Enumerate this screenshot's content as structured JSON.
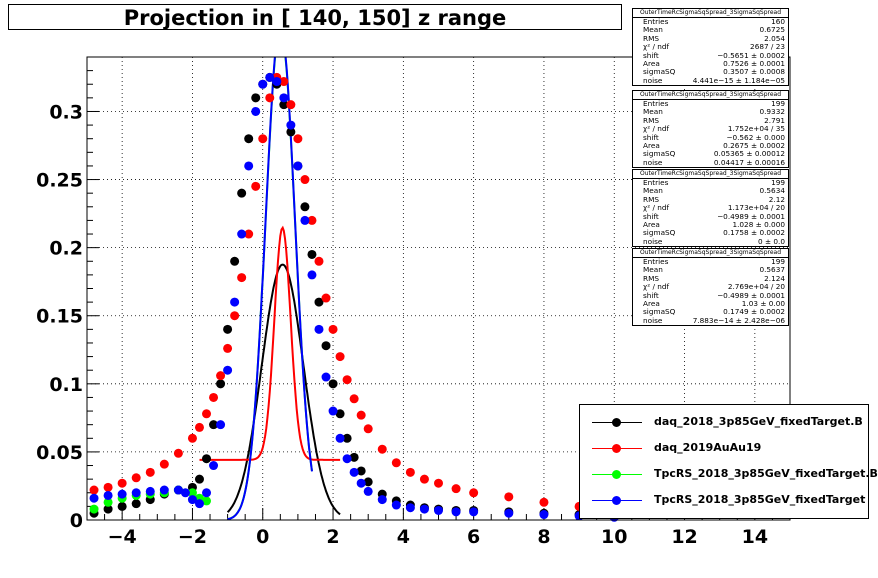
{
  "title": "Projection in [ 140, 150] z range",
  "chart_data": {
    "type": "scatter",
    "xlim": [
      -5,
      15
    ],
    "ylim": [
      0,
      0.34
    ],
    "x_ticks": [
      -4,
      -2,
      0,
      2,
      4,
      6,
      8,
      10,
      12,
      14
    ],
    "x_tick_labels": [
      "−4",
      "−2",
      "0",
      "2",
      "4",
      "6",
      "8",
      "10",
      "12",
      "14"
    ],
    "y_ticks": [
      0,
      0.05,
      0.1,
      0.15,
      0.2,
      0.25,
      0.3
    ],
    "y_tick_labels": [
      "0",
      "0.05",
      "0.1",
      "0.15",
      "0.2",
      "0.25",
      "0.3"
    ],
    "grid": true,
    "legend_position": "bottom-right",
    "series": [
      {
        "name": "daq_2018_3p85GeV_fixedTarget.B",
        "color": "#000000",
        "points": [
          [
            -4.8,
            0.005
          ],
          [
            -4.4,
            0.008
          ],
          [
            -4.0,
            0.01
          ],
          [
            -3.6,
            0.012
          ],
          [
            -3.2,
            0.015
          ],
          [
            -2.8,
            0.019
          ],
          [
            -2.4,
            0.022
          ],
          [
            -2.0,
            0.024
          ],
          [
            -1.8,
            0.03
          ],
          [
            -1.6,
            0.045
          ],
          [
            -1.4,
            0.07
          ],
          [
            -1.2,
            0.1
          ],
          [
            -1.0,
            0.14
          ],
          [
            -0.8,
            0.19
          ],
          [
            -0.6,
            0.24
          ],
          [
            -0.4,
            0.28
          ],
          [
            -0.2,
            0.31
          ],
          [
            0.0,
            0.32
          ],
          [
            0.2,
            0.325
          ],
          [
            0.4,
            0.32
          ],
          [
            0.6,
            0.305
          ],
          [
            0.8,
            0.285
          ],
          [
            1.0,
            0.26
          ],
          [
            1.2,
            0.23
          ],
          [
            1.4,
            0.195
          ],
          [
            1.6,
            0.16
          ],
          [
            1.8,
            0.128
          ],
          [
            2.0,
            0.1
          ],
          [
            2.2,
            0.078
          ],
          [
            2.4,
            0.06
          ],
          [
            2.6,
            0.046
          ],
          [
            2.8,
            0.036
          ],
          [
            3.0,
            0.028
          ],
          [
            3.4,
            0.019
          ],
          [
            3.8,
            0.014
          ],
          [
            4.2,
            0.011
          ],
          [
            4.6,
            0.009
          ],
          [
            5.0,
            0.008
          ],
          [
            5.5,
            0.007
          ],
          [
            6.0,
            0.007
          ],
          [
            7.0,
            0.006
          ],
          [
            8.0,
            0.005
          ],
          [
            9.0,
            0.004
          ],
          [
            10.0,
            0.003
          ]
        ]
      },
      {
        "name": "daq_2019AuAu19",
        "color": "#ff0000",
        "points": [
          [
            -4.8,
            0.022
          ],
          [
            -4.4,
            0.024
          ],
          [
            -4.0,
            0.027
          ],
          [
            -3.6,
            0.031
          ],
          [
            -3.2,
            0.035
          ],
          [
            -2.8,
            0.041
          ],
          [
            -2.4,
            0.049
          ],
          [
            -2.0,
            0.06
          ],
          [
            -1.8,
            0.068
          ],
          [
            -1.6,
            0.078
          ],
          [
            -1.4,
            0.09
          ],
          [
            -1.2,
            0.106
          ],
          [
            -1.0,
            0.126
          ],
          [
            -0.8,
            0.15
          ],
          [
            -0.6,
            0.178
          ],
          [
            -0.4,
            0.21
          ],
          [
            -0.2,
            0.245
          ],
          [
            0.0,
            0.28
          ],
          [
            0.2,
            0.31
          ],
          [
            0.4,
            0.325
          ],
          [
            0.6,
            0.322
          ],
          [
            0.8,
            0.305
          ],
          [
            1.0,
            0.28
          ],
          [
            1.2,
            0.25
          ],
          [
            1.4,
            0.22
          ],
          [
            1.6,
            0.19
          ],
          [
            1.8,
            0.163
          ],
          [
            2.0,
            0.14
          ],
          [
            2.2,
            0.12
          ],
          [
            2.4,
            0.103
          ],
          [
            2.6,
            0.089
          ],
          [
            2.8,
            0.077
          ],
          [
            3.0,
            0.067
          ],
          [
            3.4,
            0.052
          ],
          [
            3.8,
            0.042
          ],
          [
            4.2,
            0.035
          ],
          [
            4.6,
            0.03
          ],
          [
            5.0,
            0.027
          ],
          [
            5.5,
            0.023
          ],
          [
            6.0,
            0.02
          ],
          [
            7.0,
            0.017
          ],
          [
            8.0,
            0.013
          ],
          [
            9.0,
            0.01
          ],
          [
            10.0,
            0.008
          ]
        ]
      },
      {
        "name": "TpcRS_2018_3p85GeV_fixedTarget.B",
        "color": "#00ff00",
        "points": [
          [
            -4.8,
            0.008
          ],
          [
            -4.4,
            0.013
          ],
          [
            -4.0,
            0.016
          ],
          [
            -3.6,
            0.018
          ],
          [
            -3.2,
            0.019
          ],
          [
            -2.8,
            0.02
          ],
          [
            -2.4,
            0.022
          ],
          [
            -2.0,
            0.02
          ],
          [
            -1.8,
            0.016
          ],
          [
            -1.6,
            0.014
          ]
        ]
      },
      {
        "name": "TpcRS_2018_3p85GeV_fixedTarget",
        "color": "#0000ff",
        "points": [
          [
            -4.8,
            0.016
          ],
          [
            -4.4,
            0.018
          ],
          [
            -4.0,
            0.019
          ],
          [
            -3.6,
            0.02
          ],
          [
            -3.2,
            0.021
          ],
          [
            -2.8,
            0.022
          ],
          [
            -2.4,
            0.022
          ],
          [
            -2.2,
            0.02
          ],
          [
            -2.0,
            0.015
          ],
          [
            -1.8,
            0.012
          ],
          [
            -1.6,
            0.02
          ],
          [
            -1.4,
            0.04
          ],
          [
            -1.2,
            0.07
          ],
          [
            -1.0,
            0.11
          ],
          [
            -0.8,
            0.16
          ],
          [
            -0.6,
            0.21
          ],
          [
            -0.4,
            0.26
          ],
          [
            -0.2,
            0.3
          ],
          [
            0.0,
            0.32
          ],
          [
            0.2,
            0.325
          ],
          [
            0.4,
            0.322
          ],
          [
            0.6,
            0.31
          ],
          [
            0.8,
            0.29
          ],
          [
            1.0,
            0.26
          ],
          [
            1.2,
            0.22
          ],
          [
            1.4,
            0.18
          ],
          [
            1.6,
            0.14
          ],
          [
            1.8,
            0.105
          ],
          [
            2.0,
            0.08
          ],
          [
            2.2,
            0.06
          ],
          [
            2.4,
            0.045
          ],
          [
            2.6,
            0.035
          ],
          [
            2.8,
            0.027
          ],
          [
            3.0,
            0.021
          ],
          [
            3.4,
            0.015
          ],
          [
            3.8,
            0.011
          ],
          [
            4.2,
            0.009
          ],
          [
            4.6,
            0.008
          ],
          [
            5.0,
            0.007
          ],
          [
            5.5,
            0.006
          ],
          [
            6.0,
            0.006
          ],
          [
            7.0,
            0.005
          ],
          [
            8.0,
            0.004
          ],
          [
            9.0,
            0.003
          ],
          [
            10.0,
            0.002
          ]
        ]
      }
    ],
    "fits": [
      {
        "name": "daq_2018_3p85GeV_fixedTarget.B fit",
        "color": "#000000",
        "shift": -0.5651,
        "area": 0.7526,
        "sigmaSQ": 0.3507,
        "noise": 4.441e-15,
        "xrange": [
          -1.0,
          2.2
        ]
      },
      {
        "name": "daq_2019AuAu19 fit",
        "color": "#ff0000",
        "shift": -0.562,
        "area": 0.2675,
        "sigmaSQ": 0.05365,
        "noise": 0.04417,
        "xrange": [
          -1.8,
          2.2
        ]
      },
      {
        "name": "TpcRS_2018_3p85GeV_fixedTarget.B fit",
        "color": "#00ff00",
        "shift": -0.4989,
        "area": 1.028,
        "sigmaSQ": 0.1758,
        "noise": 0.0,
        "xrange": [
          -1.0,
          1.4
        ]
      },
      {
        "name": "TpcRS_2018_3p85GeV_fixedTarget fit",
        "color": "#0000ff",
        "shift": -0.4989,
        "area": 1.03,
        "sigmaSQ": 0.1749,
        "noise": 7.883e-14,
        "xrange": [
          -1.0,
          1.4
        ]
      }
    ]
  },
  "stats_boxes": [
    {
      "title": "OuterTimeRcSigmaSqSpread_3SigmaSqSpread",
      "rows": [
        {
          "k": "Entries",
          "v": "160"
        },
        {
          "k": "Mean",
          "v": "0.6725"
        },
        {
          "k": "RMS",
          "v": "2.054"
        },
        {
          "k": "χ² / ndf",
          "v": "2687 / 23"
        },
        {
          "k": "shift",
          "v": "−0.5651 ± 0.0002"
        },
        {
          "k": "Area",
          "v": "0.7526 ± 0.0001"
        },
        {
          "k": "sigmaSQ",
          "v": "0.3507 ± 0.0008"
        },
        {
          "k": "noise",
          "v": "4.441e−15 ± 1.184e−05"
        }
      ]
    },
    {
      "title": "OuterTimeRcSigmaSqSpread_3SigmaSqSpread",
      "rows": [
        {
          "k": "Entries",
          "v": "199"
        },
        {
          "k": "Mean",
          "v": "0.9332"
        },
        {
          "k": "RMS",
          "v": "2.791"
        },
        {
          "k": "χ² / ndf",
          "v": "1.752e+04 / 35"
        },
        {
          "k": "shift",
          "v": "−0.562 ± 0.000"
        },
        {
          "k": "Area",
          "v": "0.2675 ± 0.0002"
        },
        {
          "k": "sigmaSQ",
          "v": "0.05365 ± 0.00012"
        },
        {
          "k": "noise",
          "v": "0.04417 ± 0.00016"
        }
      ]
    },
    {
      "title": "OuterTimeRcSigmaSqSpread_3SigmaSqSpread",
      "rows": [
        {
          "k": "Entries",
          "v": "199"
        },
        {
          "k": "Mean",
          "v": "0.5634"
        },
        {
          "k": "RMS",
          "v": "2.12"
        },
        {
          "k": "χ² / ndf",
          "v": "1.173e+04 / 20"
        },
        {
          "k": "shift",
          "v": "−0.4989 ± 0.0001"
        },
        {
          "k": "Area",
          "v": "1.028 ± 0.000"
        },
        {
          "k": "sigmaSQ",
          "v": "0.1758 ± 0.0002"
        },
        {
          "k": "noise",
          "v": "0 ± 0.0"
        }
      ]
    },
    {
      "title": "OuterTimeRcSigmaSqSpread_3SigmaSqSpread",
      "rows": [
        {
          "k": "Entries",
          "v": "199"
        },
        {
          "k": "Mean",
          "v": "0.5637"
        },
        {
          "k": "RMS",
          "v": "2.124"
        },
        {
          "k": "χ² / ndf",
          "v": "2.769e+04 / 20"
        },
        {
          "k": "shift",
          "v": "−0.4989 ± 0.0001"
        },
        {
          "k": "Area",
          "v": "1.03 ± 0.00"
        },
        {
          "k": "sigmaSQ",
          "v": "0.1749 ± 0.0002"
        },
        {
          "k": "noise",
          "v": "7.883e−14 ± 2.428e−06"
        }
      ]
    }
  ],
  "legend": [
    {
      "label": "daq_2018_3p85GeV_fixedTarget.B",
      "color": "#000000"
    },
    {
      "label": "daq_2019AuAu19",
      "color": "#ff0000"
    },
    {
      "label": "TpcRS_2018_3p85GeV_fixedTarget.B",
      "color": "#00ff00"
    },
    {
      "label": "TpcRS_2018_3p85GeV_fixedTarget",
      "color": "#0000ff"
    }
  ]
}
